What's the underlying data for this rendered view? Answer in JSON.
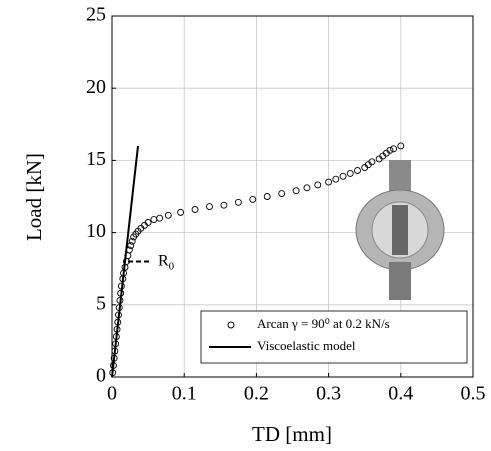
{
  "chart_data": {
    "type": "scatter",
    "xlabel": "TD [mm]",
    "ylabel": "Load [kN]",
    "xlim": [
      0,
      0.5
    ],
    "ylim": [
      0,
      25
    ],
    "xticks": [
      0,
      0.1,
      0.2,
      0.3,
      0.4,
      0.5
    ],
    "yticks": [
      0,
      5,
      10,
      15,
      20,
      25
    ],
    "grid": true,
    "legend": "lower right",
    "series": [
      {
        "name": "Arcan γ = 90⁰ at 0.2 kN/s",
        "color": "#000000",
        "mode": "markers",
        "x": [
          0.001,
          0.002,
          0.003,
          0.004,
          0.005,
          0.006,
          0.007,
          0.008,
          0.009,
          0.01,
          0.011,
          0.012,
          0.013,
          0.015,
          0.016,
          0.018,
          0.02,
          0.022,
          0.024,
          0.026,
          0.028,
          0.03,
          0.033,
          0.036,
          0.04,
          0.045,
          0.05,
          0.058,
          0.066,
          0.078,
          0.095,
          0.115,
          0.135,
          0.155,
          0.175,
          0.195,
          0.215,
          0.235,
          0.255,
          0.27,
          0.285,
          0.3,
          0.31,
          0.32,
          0.33,
          0.34,
          0.35,
          0.355,
          0.36,
          0.37,
          0.375,
          0.38,
          0.385,
          0.39,
          0.4
        ],
        "y": [
          0.3,
          0.8,
          1.3,
          1.8,
          2.3,
          2.8,
          3.3,
          3.8,
          4.3,
          4.8,
          5.3,
          5.8,
          6.3,
          6.8,
          7.2,
          7.6,
          8.0,
          8.4,
          8.8,
          9.1,
          9.4,
          9.7,
          9.9,
          10.1,
          10.3,
          10.5,
          10.7,
          10.9,
          11.0,
          11.2,
          11.4,
          11.6,
          11.8,
          11.9,
          12.1,
          12.3,
          12.5,
          12.7,
          12.9,
          13.1,
          13.3,
          13.5,
          13.7,
          13.9,
          14.1,
          14.3,
          14.5,
          14.7,
          14.9,
          15.1,
          15.3,
          15.5,
          15.7,
          15.8,
          16.0
        ]
      },
      {
        "name": "Viscoelastic model",
        "color": "#000000",
        "mode": "line",
        "x": [
          0,
          0.036
        ],
        "y": [
          0,
          16
        ]
      }
    ],
    "annotation": {
      "text": "R",
      "subscript": "0",
      "y": 8
    }
  }
}
